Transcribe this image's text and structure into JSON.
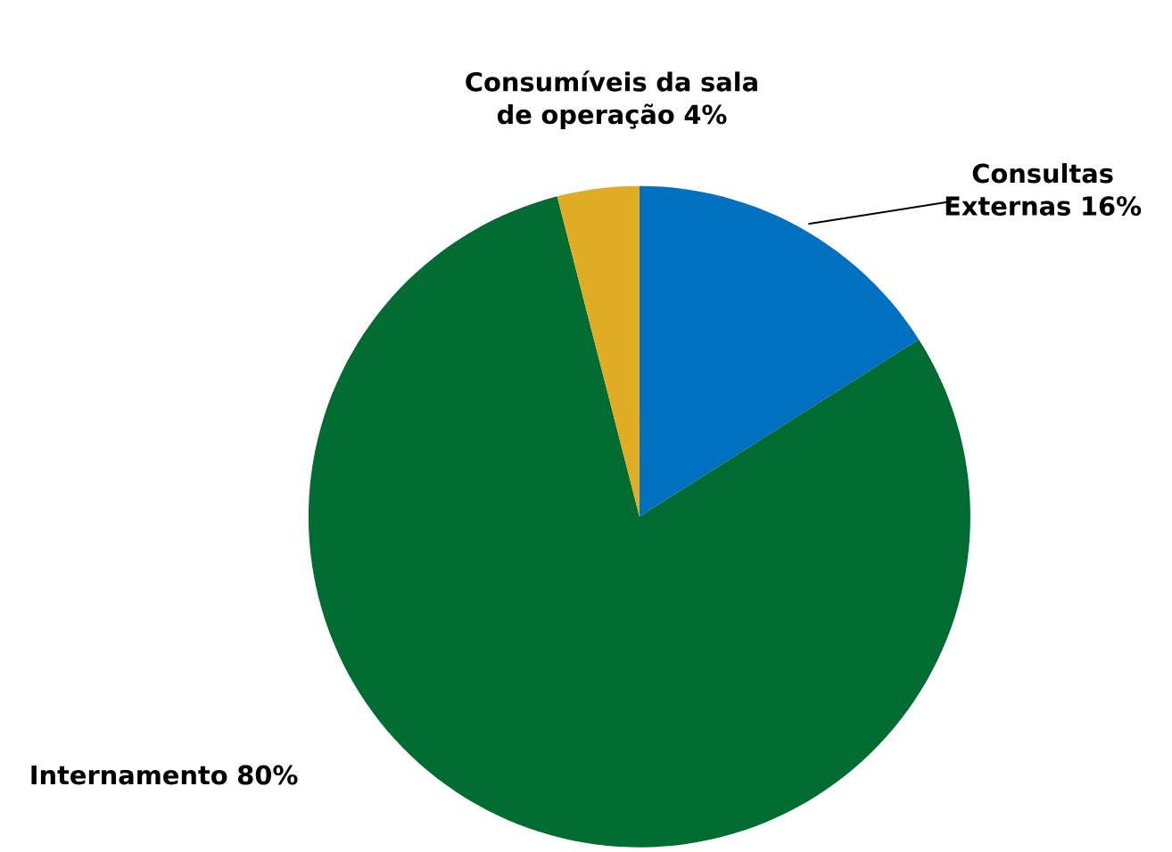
{
  "chart_data": {
    "type": "pie",
    "categories": [
      "Consultas Externas",
      "Internamento",
      "Consumíveis da sala de operação"
    ],
    "values": [
      16,
      80,
      4
    ],
    "value_labels": [
      "16%",
      "80%",
      "4%"
    ],
    "colors": [
      "#0070c0",
      "#006c31",
      "#e0ac24"
    ]
  }
}
